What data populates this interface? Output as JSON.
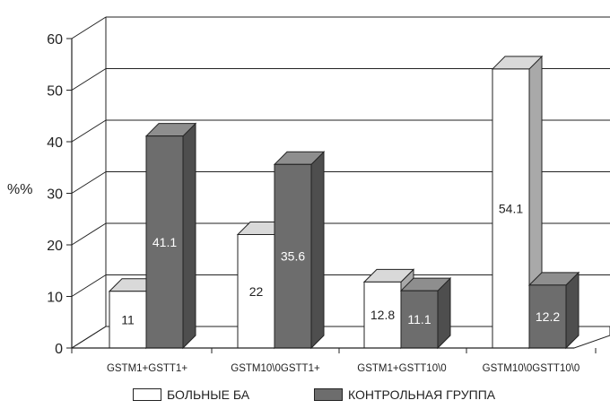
{
  "chart_data": {
    "type": "bar",
    "ylabel": "%%",
    "ylim": [
      0,
      60
    ],
    "yticks": [
      0,
      10,
      20,
      30,
      40,
      50,
      60
    ],
    "grid": true,
    "legend_position": "bottom",
    "categories": [
      "GSTM1+GSTT1+",
      "GSTM10\\0GSTT1+",
      "GSTM1+GSTT10\\0",
      "GSTM10\\0GSTT10\\0"
    ],
    "series": [
      {
        "name": "БОЛЬНЫЕ БА",
        "values": [
          11,
          22,
          12.8,
          54.1
        ],
        "labels": [
          "11",
          "22",
          "12.8",
          "54.1"
        ],
        "color": "#ffffff"
      },
      {
        "name": "КОНТРОЛЬНАЯ ГРУППА",
        "values": [
          41.1,
          35.6,
          11.1,
          12.2
        ],
        "labels": [
          "41.1",
          "35.6",
          "11.1",
          "12.2"
        ],
        "color": "#6d6d6d"
      }
    ]
  }
}
